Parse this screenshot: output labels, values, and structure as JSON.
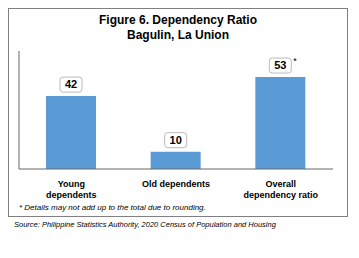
{
  "chart_data": {
    "type": "bar",
    "title": "Figure 6. Dependency Ratio",
    "subtitle": "Bagulin, La Union",
    "categories": [
      "Young\ndependents",
      "Old dependents",
      "Overall\ndependency ratio"
    ],
    "values": [
      42,
      10,
      53
    ],
    "color": "#5b9bd5",
    "ylim": [
      0,
      68
    ],
    "yticks": [],
    "grid": false,
    "tick_labels": "x",
    "data_labels": true,
    "annotations": [
      {
        "text": "*",
        "category": "Overall\ndependency ratio"
      },
      "* Details may not add up to the total due to rounding.",
      "Source: Philippine Statistics Authority, 2020 Census of Population and Housing"
    ]
  }
}
